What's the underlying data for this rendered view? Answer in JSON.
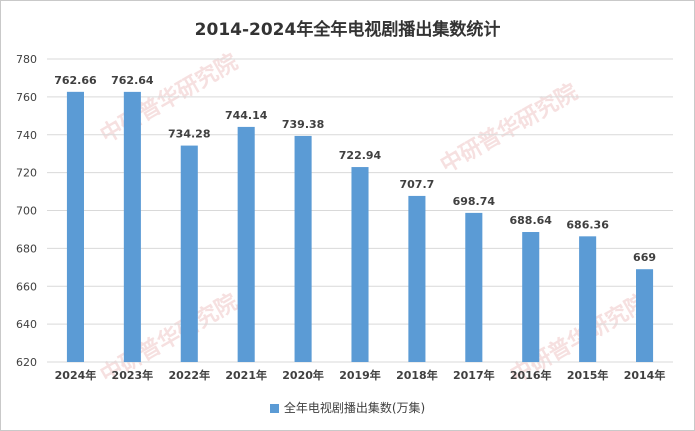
{
  "chart_data": {
    "type": "bar",
    "title": "2014-2024年全年电视剧播出集数统计",
    "categories": [
      "2024年",
      "2023年",
      "2022年",
      "2021年",
      "2020年",
      "2019年",
      "2018年",
      "2017年",
      "2016年",
      "2015年",
      "2014年"
    ],
    "series": [
      {
        "name": "全年电视剧播出集数(万集)",
        "values": [
          762.66,
          762.64,
          734.28,
          744.14,
          739.38,
          722.94,
          707.7,
          698.74,
          688.64,
          686.36,
          669
        ],
        "labels": [
          "762.66",
          "762.64",
          "734.28",
          "744.14",
          "739.38",
          "722.94",
          "707.7",
          "698.74",
          "688.64",
          "686.36",
          "669"
        ]
      }
    ],
    "ylim": [
      620,
      780
    ],
    "yticks": [
      620,
      640,
      660,
      680,
      700,
      720,
      740,
      760,
      780
    ],
    "grid": true,
    "legend": "bottom",
    "bar_color": "#5b9bd5",
    "grid_color": "#d9d9d9"
  },
  "watermark": {
    "brand": "中研普华研究院",
    "url": "www.ChinaIRN.com"
  }
}
